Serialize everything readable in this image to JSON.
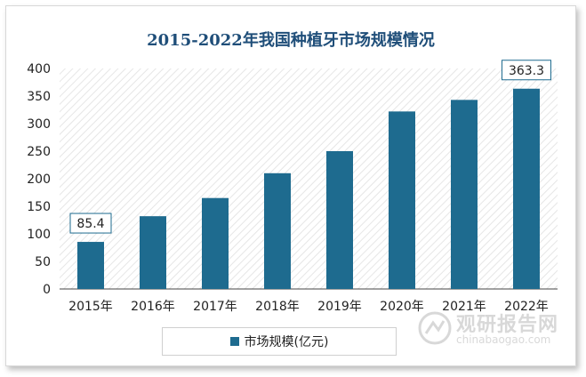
{
  "chart_data": {
    "type": "bar",
    "title": "2015-2022年我国种植牙市场规模情况",
    "categories": [
      "2015年",
      "2016年",
      "2017年",
      "2018年",
      "2019年",
      "2020年",
      "2021年",
      "2022年"
    ],
    "series": [
      {
        "name": "市场规模(亿元)",
        "values": [
          85.4,
          132,
          165,
          210,
          250,
          322,
          343,
          363.3
        ],
        "color": "#1e6b8f"
      }
    ],
    "data_labels": {
      "0": "85.4",
      "7": "363.3"
    },
    "ylim": [
      0,
      400
    ],
    "yticks": [
      0,
      50,
      100,
      150,
      200,
      250,
      300,
      350,
      400
    ],
    "grid": false,
    "legend_position": "bottom"
  },
  "watermark": {
    "brand": "观研报告网",
    "url": "chinabaogao.com",
    "icon": "watermark-logo-icon"
  }
}
